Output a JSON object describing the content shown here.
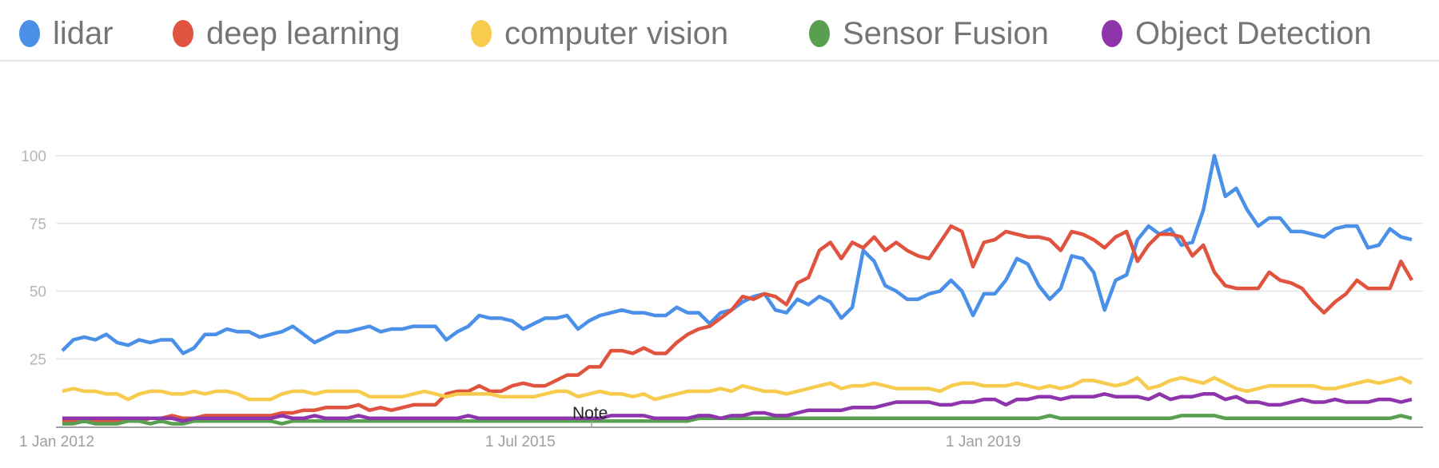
{
  "legend": [
    {
      "label": "lidar",
      "color": "#4a90e8"
    },
    {
      "label": "deep learning",
      "color": "#e0533f"
    },
    {
      "label": "computer vision",
      "color": "#f7cb4d"
    },
    {
      "label": "Sensor Fusion",
      "color": "#589f4f"
    },
    {
      "label": "Object Detection",
      "color": "#8e35ad"
    }
  ],
  "annotation": {
    "label": "Note"
  },
  "chart_data": {
    "type": "line",
    "title": "",
    "xlabel": "",
    "ylabel": "",
    "x_start": "Jan 2012",
    "x_frequency": "monthly",
    "x_tick_labels": [
      "1 Jan 2012",
      "1 Jul 2015",
      "1 Jan 2019"
    ],
    "y_tick_labels": [
      "25",
      "50",
      "75",
      "100"
    ],
    "ylim": [
      0,
      100
    ],
    "grid": true,
    "legend_position": "top",
    "series": [
      {
        "name": "lidar",
        "color": "#4a90e8",
        "values": [
          28,
          32,
          33,
          32,
          34,
          31,
          30,
          32,
          31,
          32,
          32,
          27,
          29,
          34,
          34,
          36,
          35,
          35,
          33,
          34,
          35,
          37,
          34,
          31,
          33,
          35,
          35,
          36,
          37,
          35,
          36,
          36,
          37,
          37,
          37,
          32,
          35,
          37,
          41,
          40,
          40,
          39,
          36,
          38,
          40,
          40,
          41,
          36,
          39,
          41,
          42,
          43,
          42,
          42,
          41,
          41,
          44,
          42,
          42,
          38,
          42,
          43,
          46,
          48,
          49,
          43,
          42,
          47,
          45,
          48,
          46,
          40,
          44,
          65,
          61,
          52,
          50,
          47,
          47,
          49,
          50,
          54,
          50,
          41,
          49,
          49,
          54,
          62,
          60,
          52,
          47,
          51,
          63,
          62,
          57,
          43,
          54,
          56,
          69,
          74,
          71,
          73,
          67,
          68,
          80,
          100,
          85,
          88,
          80,
          74,
          77,
          77,
          72,
          72,
          71,
          70,
          73,
          74,
          74,
          66,
          67,
          73,
          70,
          69
        ]
      },
      {
        "name": "deep learning",
        "color": "#e0533f",
        "values": [
          2,
          2,
          2,
          2,
          2,
          2,
          2,
          2,
          3,
          3,
          4,
          3,
          3,
          4,
          4,
          4,
          4,
          4,
          4,
          4,
          5,
          5,
          6,
          6,
          7,
          7,
          7,
          8,
          6,
          7,
          6,
          7,
          8,
          8,
          8,
          12,
          13,
          13,
          15,
          13,
          13,
          15,
          16,
          15,
          15,
          17,
          19,
          19,
          22,
          22,
          28,
          28,
          27,
          29,
          27,
          27,
          31,
          34,
          36,
          37,
          40,
          43,
          48,
          47,
          49,
          48,
          45,
          53,
          55,
          65,
          68,
          62,
          68,
          66,
          70,
          65,
          68,
          65,
          63,
          62,
          68,
          74,
          72,
          59,
          68,
          69,
          72,
          71,
          70,
          70,
          69,
          65,
          72,
          71,
          69,
          66,
          70,
          72,
          61,
          67,
          71,
          71,
          70,
          63,
          67,
          57,
          52,
          51,
          51,
          51,
          57,
          54,
          53,
          51,
          46,
          42,
          46,
          49,
          54,
          51,
          51,
          51,
          61,
          54
        ]
      },
      {
        "name": "computer vision",
        "color": "#f7cb4d",
        "values": [
          13,
          14,
          13,
          13,
          12,
          12,
          10,
          12,
          13,
          13,
          12,
          12,
          13,
          12,
          13,
          13,
          12,
          10,
          10,
          10,
          12,
          13,
          13,
          12,
          13,
          13,
          13,
          13,
          11,
          11,
          11,
          11,
          12,
          13,
          12,
          11,
          12,
          12,
          12,
          12,
          11,
          11,
          11,
          11,
          12,
          13,
          13,
          11,
          12,
          13,
          12,
          12,
          11,
          12,
          10,
          11,
          12,
          13,
          13,
          13,
          14,
          13,
          15,
          14,
          13,
          13,
          12,
          13,
          14,
          15,
          16,
          14,
          15,
          15,
          16,
          15,
          14,
          14,
          14,
          14,
          13,
          15,
          16,
          16,
          15,
          15,
          15,
          16,
          15,
          14,
          15,
          14,
          15,
          17,
          17,
          16,
          15,
          16,
          18,
          14,
          15,
          17,
          18,
          17,
          16,
          18,
          16,
          14,
          13,
          14,
          15,
          15,
          15,
          15,
          15,
          14,
          14,
          15,
          16,
          17,
          16,
          17,
          18,
          16
        ]
      },
      {
        "name": "Sensor Fusion",
        "color": "#589f4f",
        "values": [
          1,
          1,
          2,
          1,
          1,
          1,
          2,
          2,
          1,
          2,
          1,
          1,
          2,
          2,
          2,
          2,
          2,
          2,
          2,
          2,
          1,
          2,
          2,
          2,
          2,
          2,
          2,
          2,
          2,
          2,
          2,
          2,
          2,
          2,
          2,
          2,
          2,
          2,
          2,
          2,
          2,
          2,
          2,
          2,
          2,
          2,
          2,
          2,
          2,
          2,
          2,
          2,
          2,
          2,
          2,
          2,
          2,
          2,
          3,
          3,
          3,
          3,
          3,
          3,
          3,
          3,
          3,
          3,
          3,
          3,
          3,
          3,
          3,
          3,
          3,
          3,
          3,
          3,
          3,
          3,
          3,
          3,
          3,
          3,
          3,
          3,
          3,
          3,
          3,
          3,
          4,
          3,
          3,
          3,
          3,
          3,
          3,
          3,
          3,
          3,
          3,
          3,
          4,
          4,
          4,
          4,
          3,
          3,
          3,
          3,
          3,
          3,
          3,
          3,
          3,
          3,
          3,
          3,
          3,
          3,
          3,
          3,
          4,
          3
        ]
      },
      {
        "name": "Object Detection",
        "color": "#8e35ad",
        "values": [
          3,
          3,
          3,
          3,
          3,
          3,
          3,
          3,
          3,
          3,
          3,
          2,
          3,
          3,
          3,
          3,
          3,
          3,
          3,
          3,
          4,
          3,
          3,
          4,
          3,
          3,
          3,
          4,
          3,
          3,
          3,
          3,
          3,
          3,
          3,
          3,
          3,
          4,
          3,
          3,
          3,
          3,
          3,
          3,
          3,
          3,
          3,
          3,
          3,
          3,
          4,
          4,
          4,
          4,
          3,
          3,
          3,
          3,
          4,
          4,
          3,
          4,
          4,
          5,
          5,
          4,
          4,
          5,
          6,
          6,
          6,
          6,
          7,
          7,
          7,
          8,
          9,
          9,
          9,
          9,
          8,
          8,
          9,
          9,
          10,
          10,
          8,
          10,
          10,
          11,
          11,
          10,
          11,
          11,
          11,
          12,
          11,
          11,
          11,
          10,
          12,
          10,
          11,
          11,
          12,
          12,
          10,
          11,
          9,
          9,
          8,
          8,
          9,
          10,
          9,
          9,
          10,
          9,
          9,
          9,
          10,
          10,
          9,
          10
        ]
      }
    ]
  }
}
